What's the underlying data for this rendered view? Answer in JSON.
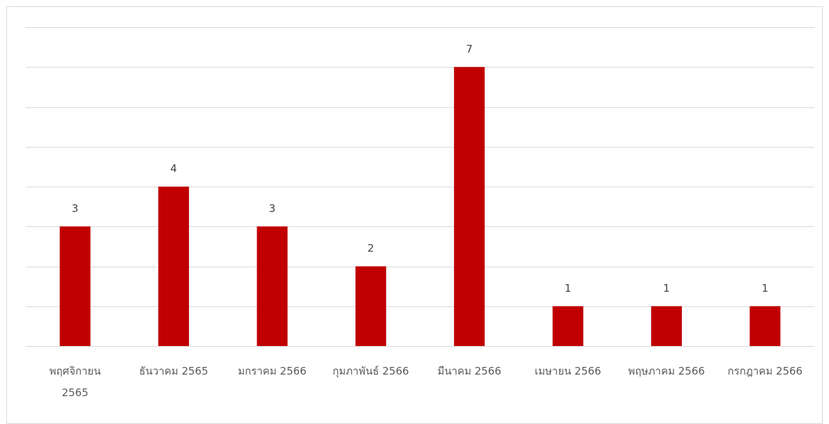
{
  "chart_data": {
    "type": "bar",
    "title": "",
    "xlabel": "",
    "ylabel": "",
    "categories": [
      [
        "พฤศจิกายน",
        "2565"
      ],
      [
        "ธันวาคม 2565"
      ],
      [
        "มกราคม 2566"
      ],
      [
        "กุมภาพันธ์ 2566"
      ],
      [
        "มีนาคม 2566"
      ],
      [
        "เมษายน 2566"
      ],
      [
        "พฤษภาคม 2566"
      ],
      [
        "กรกฎาคม 2566"
      ]
    ],
    "values": [
      3,
      4,
      3,
      2,
      7,
      1,
      1,
      1
    ],
    "ylim": [
      0,
      8
    ],
    "grid": true,
    "legend": "none",
    "bar_color": "#C00000",
    "grid_color": "#d9d9d9"
  }
}
